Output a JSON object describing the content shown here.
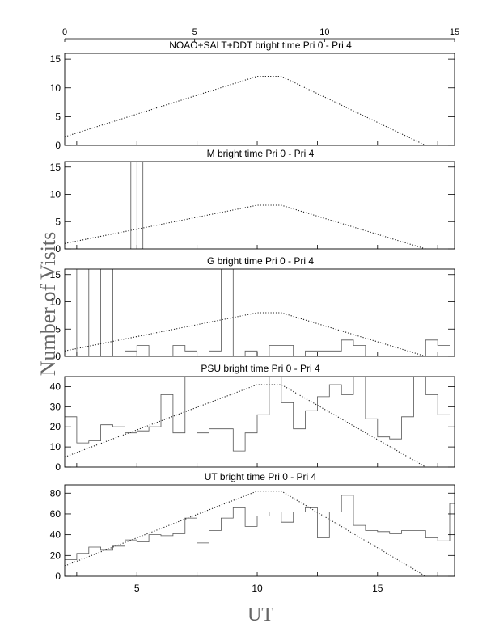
{
  "figure": {
    "ylabel": "Number of Visits",
    "xlabel": "UT",
    "top_axis_ticks": [
      "0",
      "5",
      "10",
      "15"
    ]
  },
  "chart_data": [
    {
      "type": "line",
      "title": "NOAO+SALT+DDT    bright time Pri 0 - Pri 4",
      "xlim": [
        2,
        18.2
      ],
      "ylim": [
        0,
        16
      ],
      "yticks": [
        0,
        5,
        10,
        15
      ],
      "series": [
        {
          "style": "dotted",
          "x": [
            2,
            10,
            11,
            17
          ],
          "y": [
            1.5,
            12,
            12,
            0
          ]
        }
      ]
    },
    {
      "type": "line",
      "title": "M    bright time Pri 0 - Pri 4",
      "xlim": [
        2,
        18.2
      ],
      "ylim": [
        0,
        16
      ],
      "yticks": [
        0,
        5,
        10,
        15
      ],
      "series": [
        {
          "style": "step",
          "x": [
            2,
            4.75,
            4.75,
            5.0,
            5.0,
            5.25,
            5.25,
            18.2
          ],
          "y": [
            0,
            0,
            16,
            16,
            0,
            0,
            16,
            16
          ]
        },
        {
          "style": "dotted",
          "x": [
            2,
            10,
            11,
            17
          ],
          "y": [
            1,
            8,
            8,
            0
          ]
        }
      ]
    },
    {
      "type": "line",
      "title": "G    bright time Pri 0 - Pri 4",
      "xlim": [
        2,
        18.2
      ],
      "ylim": [
        0,
        16
      ],
      "yticks": [
        0,
        5,
        10,
        15
      ],
      "series": [
        {
          "style": "histogram",
          "bin_width": 0.5,
          "x": [
            2.0,
            2.5,
            3.0,
            3.5,
            4.0,
            4.5,
            5.0,
            5.5,
            6.0,
            6.5,
            7.0,
            7.5,
            8.0,
            8.5,
            9.0,
            9.5,
            10.0,
            10.5,
            11.0,
            11.5,
            12.0,
            12.5,
            13.0,
            13.5,
            14.0,
            14.5,
            15.0,
            15.5,
            16.0,
            16.5,
            17.0,
            17.5
          ],
          "y": [
            0,
            16,
            0,
            16,
            0,
            1,
            2,
            0,
            0,
            2,
            1,
            0,
            1,
            16,
            0,
            1,
            0,
            2,
            2,
            0,
            1,
            1,
            1,
            3,
            2,
            0,
            0,
            0,
            0,
            0,
            3,
            2
          ]
        },
        {
          "style": "dotted",
          "x": [
            2,
            10,
            11,
            17
          ],
          "y": [
            1,
            8,
            8,
            0
          ]
        }
      ]
    },
    {
      "type": "line",
      "title": "PSU    bright time Pri 0 - Pri 4",
      "xlim": [
        2,
        18.2
      ],
      "ylim": [
        0,
        45
      ],
      "yticks": [
        0,
        10,
        20,
        30,
        40
      ],
      "series": [
        {
          "style": "histogram",
          "bin_width": 0.5,
          "x": [
            2.0,
            2.5,
            3.0,
            3.5,
            4.0,
            4.5,
            5.0,
            5.5,
            6.0,
            6.5,
            7.0,
            7.5,
            8.0,
            8.5,
            9.0,
            9.5,
            10.0,
            10.5,
            11.0,
            11.5,
            12.0,
            12.5,
            13.0,
            13.5,
            14.0,
            14.5,
            15.0,
            15.5,
            16.0,
            16.5,
            17.0,
            17.5
          ],
          "y": [
            25,
            12,
            13,
            21,
            20,
            17,
            18,
            20,
            36,
            17,
            45,
            17,
            19,
            19,
            8,
            17,
            26,
            45,
            32,
            19,
            28,
            35,
            41,
            36,
            45,
            24,
            15,
            14,
            25,
            45,
            36,
            26
          ]
        },
        {
          "style": "dotted",
          "x": [
            2,
            10,
            11,
            17
          ],
          "y": [
            5,
            41,
            41,
            0
          ]
        }
      ]
    },
    {
      "type": "line",
      "title": "UT    bright time Pri 0 - Pri 4",
      "xlim": [
        2,
        18.2
      ],
      "ylim": [
        0,
        88
      ],
      "yticks": [
        0,
        20,
        40,
        60,
        80
      ],
      "xticks": [
        5,
        10,
        15
      ],
      "series": [
        {
          "style": "histogram",
          "bin_width": 0.5,
          "x": [
            2.0,
            2.5,
            3.0,
            3.5,
            4.0,
            4.5,
            5.0,
            5.5,
            6.0,
            6.5,
            7.0,
            7.5,
            8.0,
            8.5,
            9.0,
            9.5,
            10.0,
            10.5,
            11.0,
            11.5,
            12.0,
            12.5,
            13.0,
            13.5,
            14.0,
            14.5,
            15.0,
            15.5,
            16.0,
            16.5,
            17.0,
            17.5,
            18.0
          ],
          "y": [
            16,
            22,
            28,
            25,
            29,
            35,
            33,
            40,
            39,
            41,
            56,
            32,
            44,
            56,
            66,
            48,
            58,
            62,
            52,
            62,
            66,
            37,
            62,
            78,
            49,
            44,
            43,
            41,
            44,
            44,
            37,
            34,
            70
          ]
        },
        {
          "style": "dotted",
          "x": [
            2,
            10,
            11,
            17
          ],
          "y": [
            10,
            82,
            82,
            0
          ]
        }
      ]
    }
  ]
}
